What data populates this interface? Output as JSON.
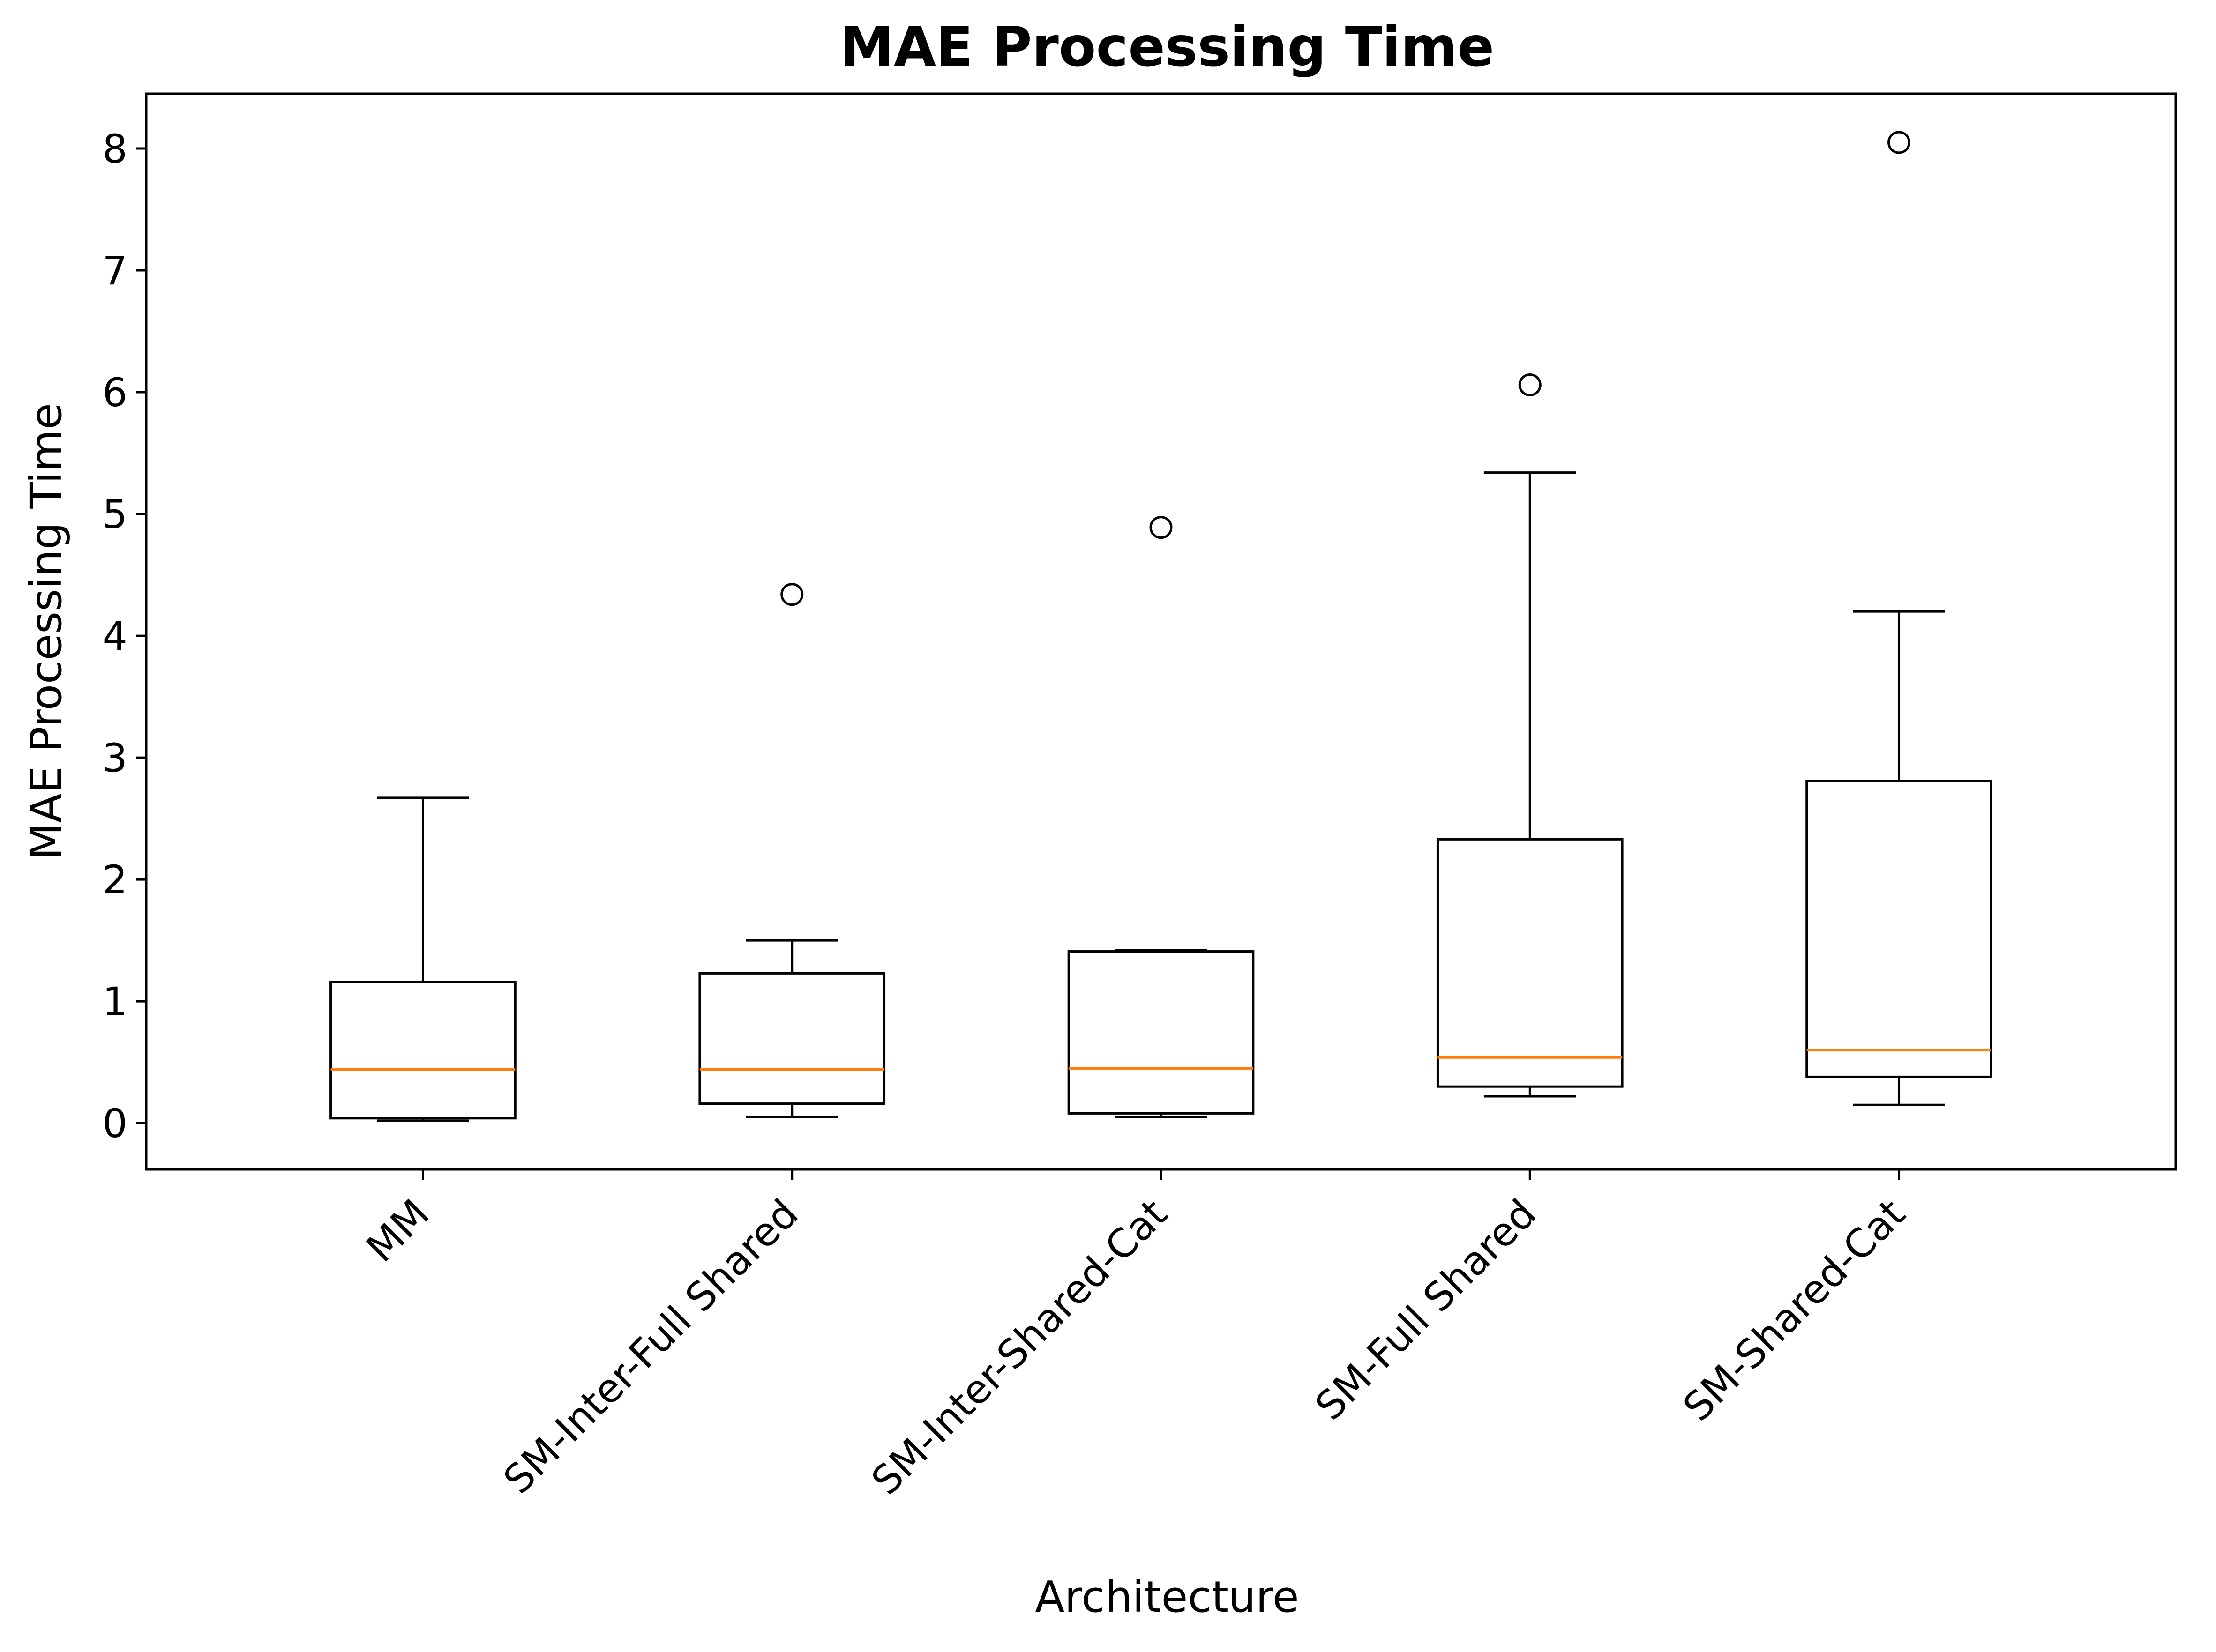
{
  "chart_data": {
    "type": "boxplot",
    "title": "MAE Processing Time",
    "xlabel": "Architecture",
    "ylabel": "MAE Processing Time",
    "ylim": [
      -0.38,
      8.45
    ],
    "yticks": [
      0,
      1,
      2,
      3,
      4,
      5,
      6,
      7,
      8
    ],
    "grid": false,
    "colors": {
      "box": "#000000",
      "median": "#ff7f0e",
      "background": "#ffffff"
    },
    "categories": [
      "MM",
      "SM-Inter-Full Shared",
      "SM-Inter-Shared-Cat",
      "SM-Full Shared",
      "SM-Shared-Cat"
    ],
    "boxes": [
      {
        "name": "MM",
        "whislo": 0.02,
        "q1": 0.04,
        "median": 0.44,
        "q3": 1.16,
        "whishi": 2.67,
        "fliers": []
      },
      {
        "name": "SM-Inter-Full Shared",
        "whislo": 0.05,
        "q1": 0.16,
        "median": 0.44,
        "q3": 1.23,
        "whishi": 1.5,
        "fliers": [
          4.34
        ]
      },
      {
        "name": "SM-Inter-Shared-Cat",
        "whislo": 0.05,
        "q1": 0.08,
        "median": 0.45,
        "q3": 1.41,
        "whishi": 1.42,
        "fliers": [
          4.89
        ]
      },
      {
        "name": "SM-Full Shared",
        "whislo": 0.22,
        "q1": 0.3,
        "median": 0.54,
        "q3": 2.33,
        "whishi": 5.34,
        "fliers": [
          6.06
        ]
      },
      {
        "name": "SM-Shared-Cat",
        "whislo": 0.15,
        "q1": 0.38,
        "median": 0.6,
        "q3": 2.81,
        "whishi": 4.2,
        "fliers": [
          8.05
        ]
      }
    ]
  }
}
